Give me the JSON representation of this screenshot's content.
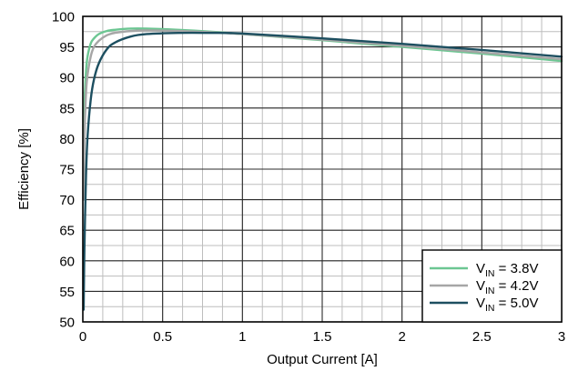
{
  "chart_data": {
    "type": "line",
    "title": "",
    "xlabel": "Output Current [A]",
    "ylabel": "Efficiency [%]",
    "xlim": [
      0,
      3
    ],
    "ylim": [
      50,
      100
    ],
    "x_ticks": [
      0,
      0.5,
      1,
      1.5,
      2,
      2.5,
      3
    ],
    "x_tick_labels": [
      "0",
      "0.5",
      "1",
      "1.5",
      "2",
      "2.5",
      "3"
    ],
    "y_ticks": [
      50,
      55,
      60,
      65,
      70,
      75,
      80,
      85,
      90,
      95,
      100
    ],
    "y_tick_labels": [
      "50",
      "55",
      "60",
      "65",
      "70",
      "75",
      "80",
      "85",
      "90",
      "95",
      "100"
    ],
    "x_minor_step": 0.125,
    "y_minor_step": 2.5,
    "grid": true,
    "legend_position": "bottom-right",
    "series": [
      {
        "name": "3.8V",
        "legend_prefix": "V",
        "legend_subscript": "IN",
        "legend_suffix": " = 3.8V",
        "color": "#6cc692",
        "x": [
          0.005,
          0.01,
          0.02,
          0.03,
          0.05,
          0.07,
          0.1,
          0.15,
          0.2,
          0.3,
          0.4,
          0.6,
          0.8,
          1.0,
          1.5,
          2.0,
          2.5,
          3.0
        ],
        "y": [
          74,
          85,
          91,
          93.5,
          95.6,
          96.4,
          97.1,
          97.6,
          97.8,
          98.0,
          98.0,
          97.8,
          97.5,
          97.1,
          96.1,
          95.0,
          93.9,
          92.7
        ]
      },
      {
        "name": "4.2V",
        "legend_prefix": "V",
        "legend_subscript": "IN",
        "legend_suffix": " = 4.2V",
        "color": "#a6a6a6",
        "x": [
          0.005,
          0.01,
          0.02,
          0.03,
          0.05,
          0.07,
          0.1,
          0.15,
          0.2,
          0.3,
          0.4,
          0.6,
          0.8,
          1.0,
          1.5,
          2.0,
          2.5,
          3.0
        ],
        "y": [
          70,
          80,
          87.5,
          90.5,
          93.5,
          95.0,
          96.0,
          96.9,
          97.3,
          97.6,
          97.7,
          97.6,
          97.4,
          97.1,
          96.2,
          95.2,
          94.1,
          93.0
        ]
      },
      {
        "name": "5.0V",
        "legend_prefix": "V",
        "legend_subscript": "IN",
        "legend_suffix": " = 5.0V",
        "color": "#1d4f60",
        "x": [
          0.005,
          0.01,
          0.02,
          0.03,
          0.05,
          0.07,
          0.1,
          0.15,
          0.2,
          0.3,
          0.4,
          0.6,
          0.8,
          1.0,
          1.5,
          2.0,
          2.5,
          3.0
        ],
        "y": [
          52,
          62,
          74,
          80.5,
          86.5,
          89.7,
          92.3,
          94.6,
          95.7,
          96.7,
          97.1,
          97.3,
          97.3,
          97.2,
          96.4,
          95.5,
          94.5,
          93.4
        ]
      }
    ]
  }
}
